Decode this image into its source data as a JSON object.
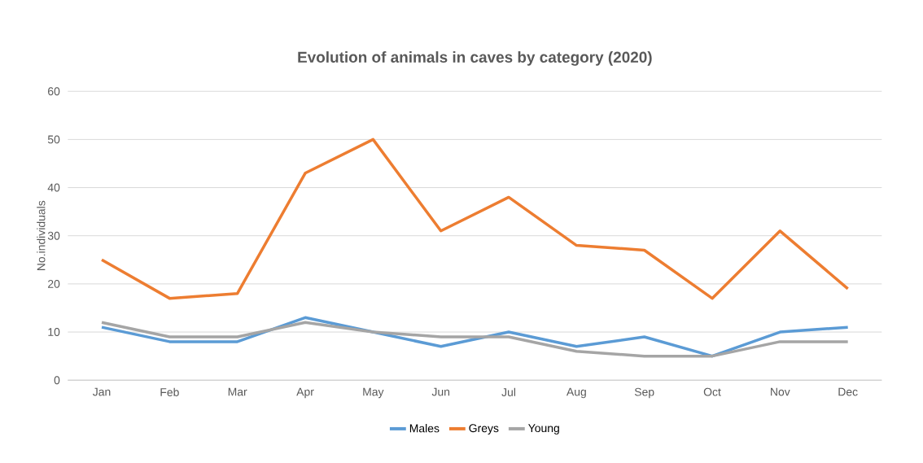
{
  "chart_data": {
    "type": "line",
    "title": "Evolution of animals in caves by category (2020)",
    "ylabel": "No.individuals",
    "categories": [
      "Jan",
      "Feb",
      "Mar",
      "Apr",
      "May",
      "Jun",
      "Jul",
      "Aug",
      "Sep",
      "Oct",
      "Nov",
      "Dec"
    ],
    "series": [
      {
        "name": "Males",
        "color": "#5b9bd5",
        "values": [
          11,
          8,
          8,
          13,
          10,
          7,
          10,
          7,
          9,
          5,
          10,
          11
        ]
      },
      {
        "name": "Greys",
        "color": "#ed7d31",
        "values": [
          25,
          17,
          18,
          43,
          50,
          31,
          38,
          28,
          27,
          17,
          31,
          19
        ]
      },
      {
        "name": "Young",
        "color": "#a5a5a5",
        "values": [
          12,
          9,
          9,
          12,
          10,
          9,
          9,
          6,
          5,
          5,
          8,
          8
        ]
      }
    ],
    "ylim": [
      0,
      60
    ],
    "yticks": [
      0,
      10,
      20,
      30,
      40,
      50,
      60
    ],
    "grid": "y",
    "legend": "bottom",
    "marker": "none",
    "line_style": "solid"
  }
}
